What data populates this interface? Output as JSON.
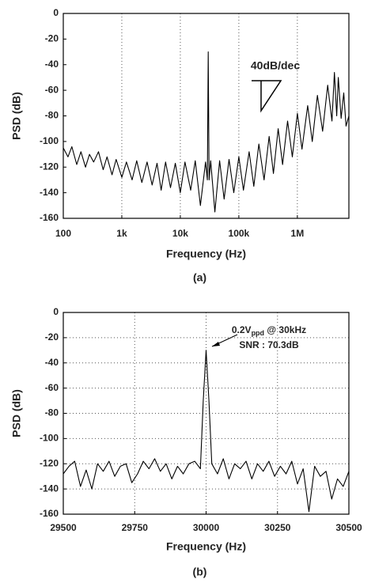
{
  "chart_data": [
    {
      "type": "line",
      "xscale": "log",
      "ylabel": "PSD (dB)",
      "xlabel": "Frequency (Hz)",
      "caption": "(a)",
      "xlim": [
        100,
        7600000
      ],
      "ylim": [
        -160,
        0
      ],
      "xticks": [
        {
          "value": 100,
          "label": "100"
        },
        {
          "value": 1000,
          "label": "1k"
        },
        {
          "value": 10000,
          "label": "10k"
        },
        {
          "value": 100000,
          "label": "100k"
        },
        {
          "value": 1000000,
          "label": "1M"
        }
      ],
      "yticks": [
        0,
        -20,
        -40,
        -60,
        -80,
        -100,
        -120,
        -140,
        -160
      ],
      "grid": true,
      "color": "#000000",
      "annotation": "40dB/dec",
      "x": [
        100,
        120,
        140,
        170,
        200,
        240,
        280,
        330,
        400,
        480,
        560,
        680,
        800,
        1000,
        1200,
        1500,
        1800,
        2200,
        2700,
        3300,
        4000,
        4700,
        5600,
        6800,
        8200,
        10000,
        12000,
        15000,
        18000,
        22000,
        27000,
        29000,
        30000,
        31000,
        33000,
        39000,
        47000,
        56000,
        68000,
        82000,
        100000,
        120000,
        150000,
        180000,
        220000,
        270000,
        330000,
        390000,
        470000,
        560000,
        680000,
        820000,
        1000000,
        1200000,
        1500000,
        1800000,
        2200000,
        2700000,
        3300000,
        3900000,
        4300000,
        4700000,
        5000000,
        5600000,
        6200000,
        6800000,
        7600000
      ],
      "values": [
        -105,
        -112,
        -104,
        -118,
        -108,
        -120,
        -110,
        -116,
        -108,
        -122,
        -112,
        -126,
        -114,
        -128,
        -116,
        -130,
        -115,
        -132,
        -116,
        -134,
        -117,
        -138,
        -116,
        -136,
        -117,
        -140,
        -116,
        -138,
        -115,
        -150,
        -116,
        -130,
        -30,
        -130,
        -115,
        -155,
        -115,
        -145,
        -114,
        -140,
        -112,
        -138,
        -108,
        -135,
        -102,
        -130,
        -96,
        -125,
        -90,
        -118,
        -84,
        -112,
        -78,
        -106,
        -72,
        -100,
        -64,
        -92,
        -56,
        -84,
        -46,
        -80,
        -50,
        -82,
        -62,
        -88,
        -80
      ]
    },
    {
      "type": "line",
      "ylabel": "PSD (dB)",
      "xlabel": "Frequency (Hz)",
      "caption": "(b)",
      "xlim": [
        29500,
        30500
      ],
      "ylim": [
        -160,
        0
      ],
      "xticks": [
        29500,
        29750,
        30000,
        30250,
        30500
      ],
      "yticks": [
        0,
        -20,
        -40,
        -60,
        -80,
        -100,
        -120,
        -140,
        -160
      ],
      "grid": true,
      "color": "#000000",
      "annotation": {
        "text": "0.2V",
        "subscript": "ppd",
        "text_after": " @ 30kHz",
        "line2": "SNR : 70.3dB"
      },
      "x": [
        29500,
        29520,
        29540,
        29560,
        29580,
        29600,
        29620,
        29640,
        29660,
        29680,
        29700,
        29720,
        29740,
        29760,
        29780,
        29800,
        29820,
        29840,
        29860,
        29880,
        29900,
        29920,
        29940,
        29960,
        29980,
        29990,
        30000,
        30010,
        30020,
        30040,
        30060,
        30080,
        30100,
        30120,
        30140,
        30160,
        30180,
        30200,
        30220,
        30240,
        30260,
        30280,
        30300,
        30320,
        30340,
        30360,
        30380,
        30400,
        30420,
        30440,
        30460,
        30480,
        30500
      ],
      "values": [
        -128,
        -122,
        -118,
        -138,
        -125,
        -140,
        -120,
        -126,
        -118,
        -130,
        -122,
        -120,
        -135,
        -128,
        -118,
        -124,
        -116,
        -126,
        -120,
        -132,
        -122,
        -128,
        -120,
        -118,
        -124,
        -70,
        -30,
        -70,
        -120,
        -128,
        -116,
        -132,
        -120,
        -124,
        -118,
        -132,
        -120,
        -126,
        -118,
        -130,
        -122,
        -128,
        -118,
        -136,
        -124,
        -158,
        -122,
        -130,
        -126,
        -148,
        -132,
        -138,
        -126
      ]
    }
  ]
}
